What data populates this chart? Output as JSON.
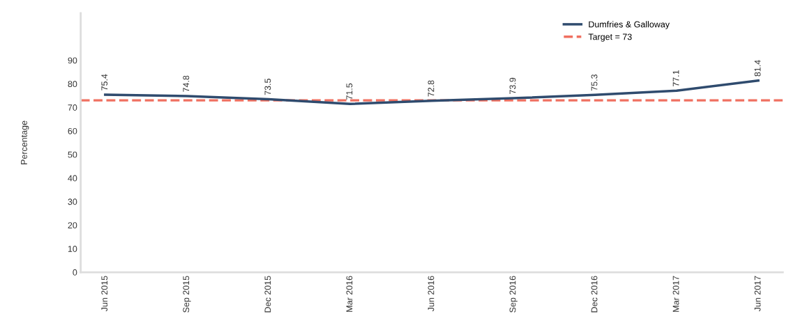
{
  "chart_data": {
    "type": "line",
    "ylabel": "Percentage",
    "categories": [
      "Jun 2015",
      "Sep 2015",
      "Dec 2015",
      "Mar 2016",
      "Jun 2016",
      "Sep 2016",
      "Dec 2016",
      "Mar 2017",
      "Jun 2017"
    ],
    "series": [
      {
        "name": "Dumfries & Galloway",
        "color": "#2f4b6e",
        "values": [
          75.4,
          74.8,
          73.5,
          71.5,
          72.8,
          73.9,
          75.3,
          77.1,
          81.4
        ]
      }
    ],
    "ref_lines": [
      {
        "axis": "y",
        "value": 73,
        "label": "Target = 73",
        "color": "#f07060",
        "line_style": "dashed"
      }
    ],
    "ylim": [
      0,
      110
    ],
    "yticks": [
      0,
      10,
      20,
      30,
      40,
      50,
      60,
      70,
      80,
      90
    ],
    "data_labels": true,
    "grid": false,
    "legend": "top right",
    "marker": "none",
    "line_style": "solid"
  }
}
